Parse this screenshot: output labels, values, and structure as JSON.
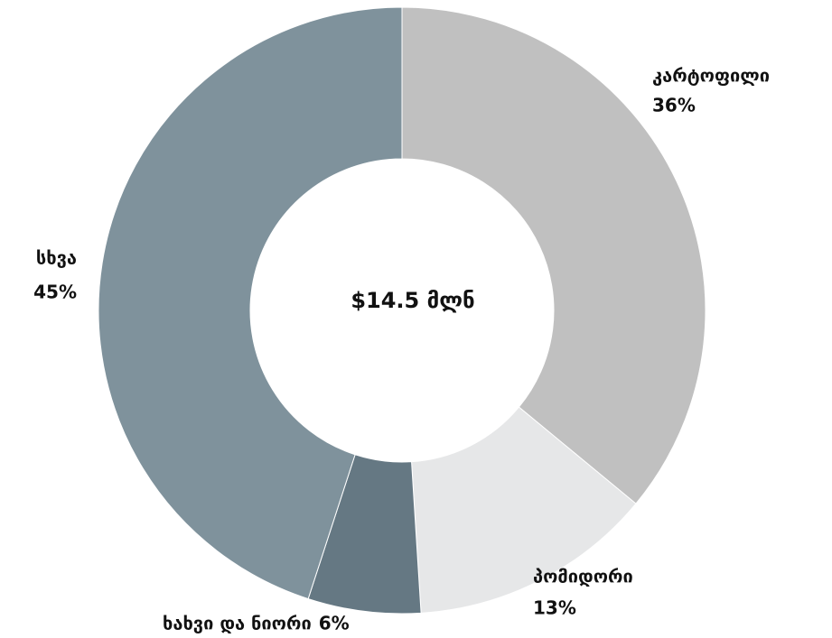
{
  "chart_data": {
    "type": "donut",
    "center_label": "$14.5 მლნ",
    "categories": [
      "კარტოფილი",
      "პომიდორი",
      "ხახვი და ნიორი",
      "სხვა"
    ],
    "values": [
      36,
      13,
      6,
      45
    ],
    "value_labels": [
      "36%",
      "13%",
      "6%",
      "45%"
    ],
    "colors": [
      "#c0c0c0",
      "#e6e7e8",
      "#657883",
      "#7f929c"
    ]
  }
}
